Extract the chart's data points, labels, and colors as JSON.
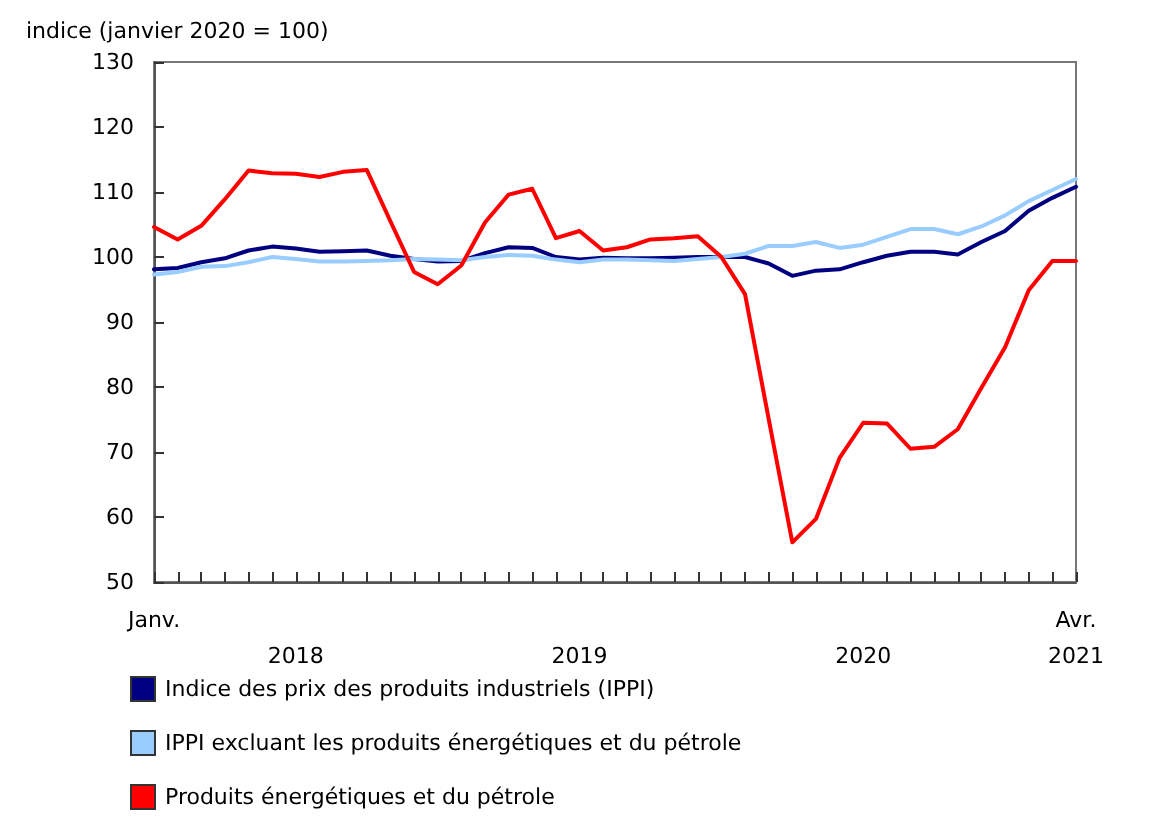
{
  "chart_data": {
    "type": "line",
    "ylabel": "indice (janvier 2020 = 100)",
    "categories": [
      "Janv.",
      null,
      null,
      null,
      null,
      null,
      "2018",
      null,
      null,
      null,
      null,
      null,
      null,
      null,
      null,
      null,
      null,
      null,
      "2019",
      null,
      null,
      null,
      null,
      null,
      null,
      null,
      null,
      null,
      null,
      null,
      "2020",
      null,
      null,
      null,
      null,
      null,
      null,
      null,
      null,
      "Avr.\n2021"
    ],
    "series": [
      {
        "name": "Indice des prix des produits industriels (IPPI)",
        "color": "#000080",
        "values": [
          98.1,
          98.3,
          99.2,
          99.8,
          101.0,
          101.6,
          101.3,
          100.8,
          100.9,
          101.0,
          100.2,
          99.7,
          99.3,
          99.4,
          100.6,
          101.5,
          101.4,
          100.0,
          99.6,
          99.9,
          99.8,
          99.8,
          99.9,
          100.0,
          100.0,
          100.0,
          99.0,
          97.1,
          97.9,
          98.1,
          99.2,
          100.2,
          100.8,
          100.8,
          100.4,
          102.3,
          104.0,
          107.1,
          109.1,
          110.8
        ]
      },
      {
        "name": "IPPI excluant les produits énergétiques et du pétrole",
        "color": "#99ccff",
        "values": [
          97.3,
          97.7,
          98.5,
          98.6,
          99.2,
          100.0,
          99.7,
          99.3,
          99.3,
          99.4,
          99.5,
          99.7,
          99.6,
          99.5,
          100.0,
          100.3,
          100.2,
          99.6,
          99.2,
          99.6,
          99.6,
          99.5,
          99.4,
          99.7,
          100.0,
          100.5,
          101.7,
          101.7,
          102.3,
          101.4,
          101.9,
          103.1,
          104.3,
          104.3,
          103.5,
          104.7,
          106.4,
          108.6,
          110.3,
          112.0
        ]
      },
      {
        "name": "Produits énergétiques et du pétrole",
        "color": "#ff0000",
        "values": [
          104.6,
          102.7,
          104.8,
          108.9,
          113.3,
          112.9,
          112.8,
          112.3,
          113.1,
          113.4,
          105.5,
          97.7,
          95.8,
          98.7,
          105.3,
          109.6,
          110.5,
          102.9,
          104.0,
          101.0,
          101.5,
          102.7,
          102.9,
          103.2,
          100.0,
          94.3,
          75.1,
          56.1,
          59.7,
          69.1,
          74.5,
          74.4,
          70.5,
          70.8,
          73.5,
          79.9,
          86.1,
          94.9,
          99.4,
          99.4
        ]
      }
    ],
    "ylim": [
      50,
      130
    ],
    "yticks": [
      50,
      60,
      70,
      80,
      90,
      100,
      110,
      120,
      130
    ],
    "grid": false,
    "legend": "bottom",
    "marker": "none",
    "line_style": "solid"
  }
}
